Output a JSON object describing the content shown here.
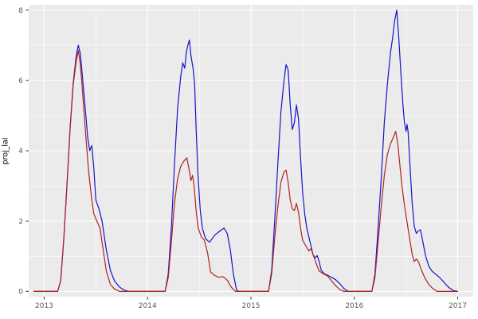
{
  "chart_data": {
    "type": "line",
    "title": "",
    "xlabel": "",
    "ylabel": "proj_lai",
    "xlim": [
      2012.85,
      2017.15
    ],
    "ylim": [
      -0.15,
      8.15
    ],
    "x_ticks": [
      2013,
      2014,
      2015,
      2016,
      2017
    ],
    "x_minor_ticks": [
      2013.5,
      2014.5,
      2015.5,
      2016.5
    ],
    "y_ticks": [
      0,
      2,
      4,
      6,
      8
    ],
    "y_minor_ticks": [
      1,
      3,
      5,
      7
    ],
    "grid": "on",
    "legend": "none",
    "panel_bg": "#EBEBEB",
    "grid_color": "#FFFFFF",
    "tick_color": "#333333",
    "tick_label_color": "#595959",
    "series": [
      {
        "name": "projected-lai-blue",
        "color": "#1414CC",
        "points": [
          [
            2012.9,
            0
          ],
          [
            2013.13,
            0
          ],
          [
            2013.16,
            0.3
          ],
          [
            2013.19,
            1.5
          ],
          [
            2013.22,
            3.0
          ],
          [
            2013.25,
            4.6
          ],
          [
            2013.28,
            5.9
          ],
          [
            2013.31,
            6.7
          ],
          [
            2013.33,
            7.0
          ],
          [
            2013.35,
            6.75
          ],
          [
            2013.37,
            6.1
          ],
          [
            2013.4,
            5.1
          ],
          [
            2013.42,
            4.4
          ],
          [
            2013.44,
            4.0
          ],
          [
            2013.46,
            4.15
          ],
          [
            2013.48,
            3.5
          ],
          [
            2013.5,
            2.6
          ],
          [
            2013.53,
            2.35
          ],
          [
            2013.56,
            2.0
          ],
          [
            2013.6,
            1.2
          ],
          [
            2013.64,
            0.6
          ],
          [
            2013.68,
            0.3
          ],
          [
            2013.73,
            0.12
          ],
          [
            2013.78,
            0.03
          ],
          [
            2013.82,
            0
          ],
          [
            2014.17,
            0
          ],
          [
            2014.2,
            0.5
          ],
          [
            2014.23,
            1.8
          ],
          [
            2014.26,
            3.6
          ],
          [
            2014.29,
            5.2
          ],
          [
            2014.32,
            6.1
          ],
          [
            2014.34,
            6.5
          ],
          [
            2014.36,
            6.35
          ],
          [
            2014.375,
            6.8
          ],
          [
            2014.39,
            7.0
          ],
          [
            2014.405,
            7.15
          ],
          [
            2014.42,
            6.7
          ],
          [
            2014.44,
            6.35
          ],
          [
            2014.455,
            5.9
          ],
          [
            2014.47,
            4.6
          ],
          [
            2014.49,
            3.2
          ],
          [
            2014.51,
            2.3
          ],
          [
            2014.53,
            1.8
          ],
          [
            2014.56,
            1.5
          ],
          [
            2014.6,
            1.4
          ],
          [
            2014.65,
            1.6
          ],
          [
            2014.7,
            1.72
          ],
          [
            2014.74,
            1.8
          ],
          [
            2014.77,
            1.65
          ],
          [
            2014.8,
            1.2
          ],
          [
            2014.83,
            0.5
          ],
          [
            2014.86,
            0.05
          ],
          [
            2014.88,
            0
          ],
          [
            2015.17,
            0
          ],
          [
            2015.2,
            0.6
          ],
          [
            2015.23,
            2.0
          ],
          [
            2015.26,
            3.6
          ],
          [
            2015.29,
            5.1
          ],
          [
            2015.32,
            6.0
          ],
          [
            2015.34,
            6.45
          ],
          [
            2015.36,
            6.3
          ],
          [
            2015.38,
            5.3
          ],
          [
            2015.4,
            4.6
          ],
          [
            2015.42,
            4.8
          ],
          [
            2015.44,
            5.3
          ],
          [
            2015.46,
            4.9
          ],
          [
            2015.48,
            3.8
          ],
          [
            2015.5,
            2.8
          ],
          [
            2015.52,
            2.2
          ],
          [
            2015.54,
            1.8
          ],
          [
            2015.56,
            1.55
          ],
          [
            2015.58,
            1.3
          ],
          [
            2015.6,
            1.05
          ],
          [
            2015.62,
            0.95
          ],
          [
            2015.64,
            1.02
          ],
          [
            2015.66,
            0.85
          ],
          [
            2015.68,
            0.6
          ],
          [
            2015.71,
            0.5
          ],
          [
            2015.74,
            0.46
          ],
          [
            2015.78,
            0.4
          ],
          [
            2015.82,
            0.33
          ],
          [
            2015.86,
            0.22
          ],
          [
            2015.9,
            0.08
          ],
          [
            2015.94,
            0
          ],
          [
            2016.17,
            0
          ],
          [
            2016.2,
            0.5
          ],
          [
            2016.23,
            1.8
          ],
          [
            2016.26,
            3.2
          ],
          [
            2016.29,
            4.8
          ],
          [
            2016.32,
            5.9
          ],
          [
            2016.35,
            6.8
          ],
          [
            2016.37,
            7.2
          ],
          [
            2016.39,
            7.7
          ],
          [
            2016.41,
            8.0
          ],
          [
            2016.43,
            7.2
          ],
          [
            2016.45,
            6.2
          ],
          [
            2016.47,
            5.3
          ],
          [
            2016.485,
            4.8
          ],
          [
            2016.5,
            4.55
          ],
          [
            2016.51,
            4.75
          ],
          [
            2016.52,
            4.55
          ],
          [
            2016.54,
            3.5
          ],
          [
            2016.56,
            2.5
          ],
          [
            2016.58,
            1.85
          ],
          [
            2016.6,
            1.65
          ],
          [
            2016.62,
            1.72
          ],
          [
            2016.64,
            1.75
          ],
          [
            2016.66,
            1.45
          ],
          [
            2016.69,
            1.0
          ],
          [
            2016.72,
            0.72
          ],
          [
            2016.75,
            0.58
          ],
          [
            2016.79,
            0.48
          ],
          [
            2016.83,
            0.38
          ],
          [
            2016.87,
            0.25
          ],
          [
            2016.91,
            0.12
          ],
          [
            2016.96,
            0.02
          ],
          [
            2017.0,
            0
          ]
        ]
      },
      {
        "name": "projected-lai-red",
        "color": "#B22222",
        "points": [
          [
            2012.9,
            0
          ],
          [
            2013.13,
            0
          ],
          [
            2013.16,
            0.3
          ],
          [
            2013.19,
            1.5
          ],
          [
            2013.22,
            3.0
          ],
          [
            2013.25,
            4.6
          ],
          [
            2013.28,
            5.85
          ],
          [
            2013.31,
            6.55
          ],
          [
            2013.33,
            6.85
          ],
          [
            2013.35,
            6.45
          ],
          [
            2013.37,
            5.7
          ],
          [
            2013.4,
            4.5
          ],
          [
            2013.43,
            3.4
          ],
          [
            2013.46,
            2.6
          ],
          [
            2013.48,
            2.2
          ],
          [
            2013.51,
            2.0
          ],
          [
            2013.54,
            1.8
          ],
          [
            2013.57,
            1.2
          ],
          [
            2013.6,
            0.6
          ],
          [
            2013.64,
            0.2
          ],
          [
            2013.68,
            0.07
          ],
          [
            2013.73,
            0
          ],
          [
            2014.17,
            0
          ],
          [
            2014.2,
            0.4
          ],
          [
            2014.23,
            1.4
          ],
          [
            2014.26,
            2.5
          ],
          [
            2014.29,
            3.2
          ],
          [
            2014.32,
            3.55
          ],
          [
            2014.35,
            3.7
          ],
          [
            2014.38,
            3.8
          ],
          [
            2014.4,
            3.5
          ],
          [
            2014.42,
            3.15
          ],
          [
            2014.435,
            3.3
          ],
          [
            2014.45,
            3.0
          ],
          [
            2014.47,
            2.3
          ],
          [
            2014.49,
            1.8
          ],
          [
            2014.52,
            1.55
          ],
          [
            2014.55,
            1.45
          ],
          [
            2014.58,
            1.1
          ],
          [
            2014.61,
            0.55
          ],
          [
            2014.65,
            0.45
          ],
          [
            2014.69,
            0.4
          ],
          [
            2014.73,
            0.42
          ],
          [
            2014.77,
            0.32
          ],
          [
            2014.81,
            0.12
          ],
          [
            2014.85,
            0
          ],
          [
            2015.17,
            0
          ],
          [
            2015.2,
            0.5
          ],
          [
            2015.23,
            1.5
          ],
          [
            2015.26,
            2.4
          ],
          [
            2015.29,
            3.1
          ],
          [
            2015.32,
            3.4
          ],
          [
            2015.34,
            3.45
          ],
          [
            2015.36,
            3.1
          ],
          [
            2015.38,
            2.6
          ],
          [
            2015.4,
            2.35
          ],
          [
            2015.42,
            2.3
          ],
          [
            2015.44,
            2.5
          ],
          [
            2015.46,
            2.25
          ],
          [
            2015.48,
            1.8
          ],
          [
            2015.5,
            1.45
          ],
          [
            2015.53,
            1.3
          ],
          [
            2015.56,
            1.15
          ],
          [
            2015.58,
            1.22
          ],
          [
            2015.6,
            1.05
          ],
          [
            2015.63,
            0.8
          ],
          [
            2015.66,
            0.58
          ],
          [
            2015.7,
            0.5
          ],
          [
            2015.74,
            0.44
          ],
          [
            2015.78,
            0.3
          ],
          [
            2015.82,
            0.16
          ],
          [
            2015.86,
            0.05
          ],
          [
            2015.9,
            0
          ],
          [
            2016.17,
            0
          ],
          [
            2016.2,
            0.4
          ],
          [
            2016.23,
            1.4
          ],
          [
            2016.26,
            2.4
          ],
          [
            2016.29,
            3.3
          ],
          [
            2016.32,
            3.9
          ],
          [
            2016.35,
            4.2
          ],
          [
            2016.38,
            4.4
          ],
          [
            2016.4,
            4.55
          ],
          [
            2016.42,
            4.2
          ],
          [
            2016.44,
            3.6
          ],
          [
            2016.46,
            3.0
          ],
          [
            2016.48,
            2.55
          ],
          [
            2016.5,
            2.15
          ],
          [
            2016.53,
            1.6
          ],
          [
            2016.56,
            1.05
          ],
          [
            2016.58,
            0.85
          ],
          [
            2016.6,
            0.92
          ],
          [
            2016.62,
            0.85
          ],
          [
            2016.65,
            0.6
          ],
          [
            2016.68,
            0.4
          ],
          [
            2016.72,
            0.2
          ],
          [
            2016.76,
            0.08
          ],
          [
            2016.8,
            0
          ],
          [
            2017.0,
            0
          ]
        ]
      }
    ]
  }
}
